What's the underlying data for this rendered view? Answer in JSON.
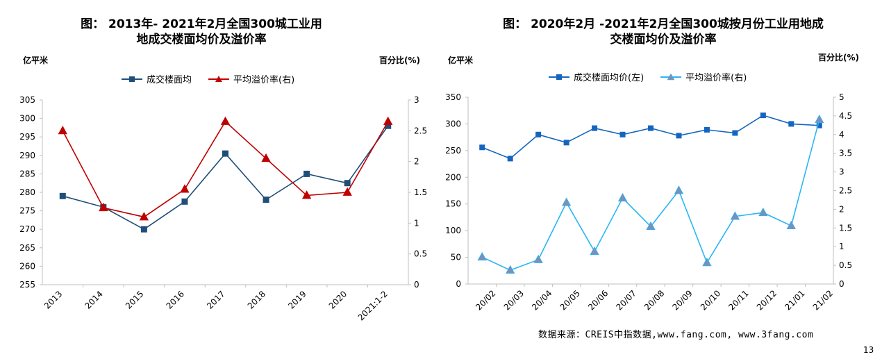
{
  "chart_data": [
    {
      "type": "line",
      "title": "图： 2013年- 2021年2月全国300城工业用\n地成交楼面均价及溢价率",
      "ylabel_left": "亿平米",
      "ylabel_right": "百分比(%)",
      "categories": [
        "2013",
        "2014",
        "2015",
        "2016",
        "2017",
        "2018",
        "2019",
        "2020",
        "2021:1-2"
      ],
      "ylim_left": [
        255,
        305
      ],
      "yticks_left": [
        255,
        260,
        265,
        270,
        275,
        280,
        285,
        290,
        295,
        300,
        305
      ],
      "ylim_right": [
        0,
        3
      ],
      "yticks_right": [
        "0",
        "0.5",
        "1",
        "1.5",
        "2",
        "2.5",
        "3"
      ],
      "series": [
        {
          "name": "成交楼面均",
          "axis": "left",
          "color": "#1f4e79",
          "marker": "square",
          "values": [
            279,
            276,
            270,
            277.5,
            290.5,
            278,
            285,
            282.5,
            298
          ]
        },
        {
          "name": "平均溢价率(右)",
          "axis": "right",
          "color": "#c00000",
          "marker": "triangle",
          "values": [
            2.5,
            1.25,
            1.1,
            1.55,
            2.65,
            2.05,
            1.45,
            1.5,
            2.65
          ]
        }
      ]
    },
    {
      "type": "line",
      "title": "图： 2020年2月 -2021年2月全国300城按月份工业用地成\n交楼面均价及溢价率",
      "ylabel_left": "亿平米",
      "ylabel_right": "百分比(%)",
      "categories": [
        "20/02",
        "20/03",
        "20/04",
        "20/05",
        "20/06",
        "20/07",
        "20/08",
        "20/09",
        "20/10",
        "20/11",
        "20/12",
        "21/01",
        "21/02"
      ],
      "ylim_left": [
        0,
        350
      ],
      "yticks_left": [
        0,
        50,
        100,
        150,
        200,
        250,
        300,
        350
      ],
      "ylim_right": [
        0,
        5
      ],
      "yticks_right": [
        "0",
        "0.5",
        "1",
        "1.5",
        "2",
        "2.5",
        "3",
        "3.5",
        "4",
        "4.5",
        "5"
      ],
      "series": [
        {
          "name": "成交楼面均价(左)",
          "axis": "left",
          "color": "#1565c0",
          "marker": "square",
          "values": [
            256,
            235,
            280,
            265,
            292,
            280,
            292,
            278,
            289,
            283,
            316,
            300,
            297
          ]
        },
        {
          "name": "平均溢价率(右)",
          "axis": "right",
          "color": "#29b6f6",
          "marker": "triangle",
          "values": [
            0.72,
            0.37,
            0.65,
            2.18,
            0.87,
            2.3,
            1.54,
            2.5,
            0.57,
            1.81,
            1.91,
            1.56,
            4.4
          ]
        }
      ]
    }
  ],
  "footer": {
    "source": "数据来源：CREIS中指数据,www.fang.com, www.3fang.com",
    "page_number": "13"
  }
}
